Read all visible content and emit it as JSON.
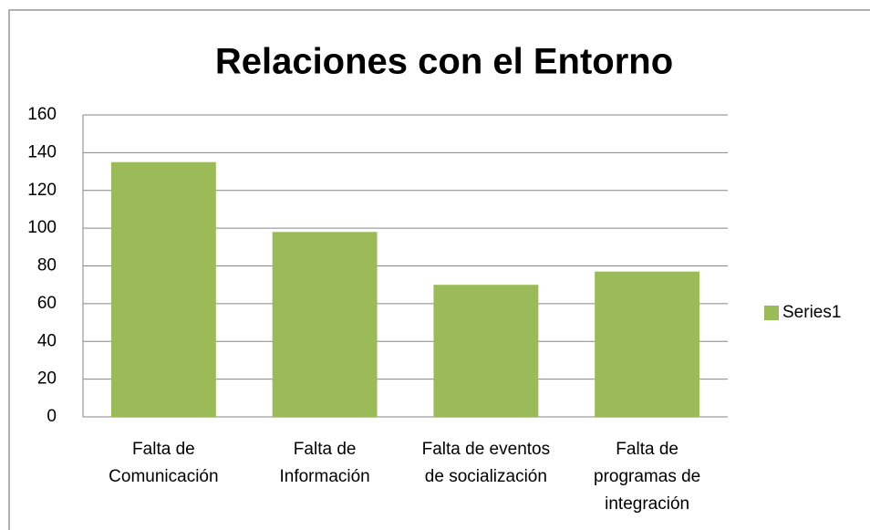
{
  "chart_data": {
    "type": "bar",
    "title": "Relaciones con el Entorno",
    "categories": [
      "Falta de Comunicación",
      "Falta de Información",
      "Falta de eventos de socialización",
      "Falta de programas de integración"
    ],
    "series": [
      {
        "name": "Series1",
        "color": "#9bbb59",
        "values": [
          135,
          98,
          70,
          77
        ]
      }
    ],
    "ylim": [
      0,
      160
    ],
    "yticks": [
      0,
      20,
      40,
      60,
      80,
      100,
      120,
      140,
      160
    ],
    "grid": true,
    "legend": "right"
  }
}
